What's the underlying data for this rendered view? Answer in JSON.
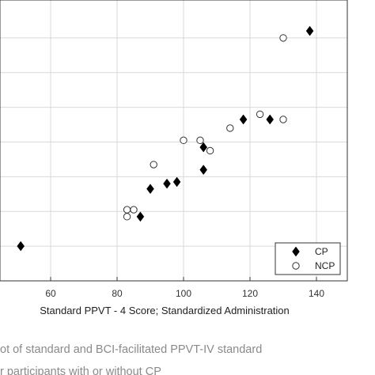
{
  "chart_data": {
    "type": "scatter",
    "xlabel": "Standard PPVT - 4 Score; Standardized Administration",
    "x_ticks": [
      60,
      80,
      100,
      120,
      140
    ],
    "xlim": [
      40,
      150
    ],
    "ylim": [
      0,
      155
    ],
    "grid": true,
    "legend_position": "bottom-right",
    "series": [
      {
        "name": "CP",
        "marker": "filled-diamond",
        "color": "#000000",
        "points": [
          {
            "x": 51,
            "y": 20
          },
          {
            "x": 87,
            "y": 37
          },
          {
            "x": 90,
            "y": 53
          },
          {
            "x": 95,
            "y": 56
          },
          {
            "x": 98,
            "y": 57
          },
          {
            "x": 106,
            "y": 64
          },
          {
            "x": 106,
            "y": 77
          },
          {
            "x": 118,
            "y": 93
          },
          {
            "x": 126,
            "y": 93
          },
          {
            "x": 138,
            "y": 144
          }
        ]
      },
      {
        "name": "NCP",
        "marker": "open-circle",
        "color": "#000000",
        "points": [
          {
            "x": 83,
            "y": 37
          },
          {
            "x": 83,
            "y": 41
          },
          {
            "x": 85,
            "y": 41
          },
          {
            "x": 91,
            "y": 67
          },
          {
            "x": 100,
            "y": 81
          },
          {
            "x": 105,
            "y": 81
          },
          {
            "x": 108,
            "y": 75
          },
          {
            "x": 114,
            "y": 88
          },
          {
            "x": 123,
            "y": 96
          },
          {
            "x": 130,
            "y": 93
          },
          {
            "x": 130,
            "y": 140
          }
        ]
      }
    ]
  },
  "caption": {
    "line1": "ot of standard and BCI-facilitated PPVT-IV standard",
    "line2": "r participants with or without CP"
  }
}
